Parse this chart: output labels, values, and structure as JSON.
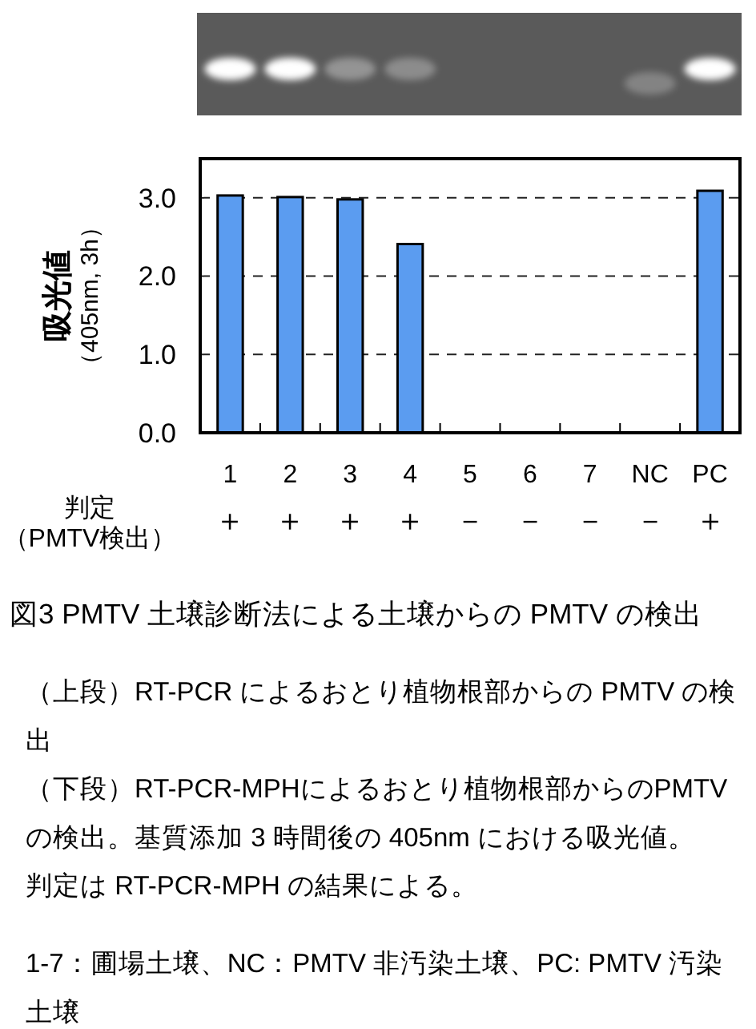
{
  "chart_data": {
    "type": "bar",
    "title": "図3 PMTV 土壌診断法による土壌からの PMTV の検出",
    "ylabel": "吸光値（405nm, 3h）",
    "categories": [
      "1",
      "2",
      "3",
      "4",
      "5",
      "6",
      "7",
      "NC",
      "PC"
    ],
    "values": [
      3.03,
      3.01,
      2.98,
      2.41,
      0,
      0,
      0,
      0,
      3.09
    ],
    "color": "#5b9cf0",
    "ylim": [
      0,
      3.5
    ],
    "yticks": [
      {
        "value": 0,
        "label": "0.0"
      },
      {
        "value": 1,
        "label": "1.0"
      },
      {
        "value": 2,
        "label": "2.0"
      },
      {
        "value": 3,
        "label": "3.0"
      }
    ],
    "grid": "y",
    "annotations": [
      "判定（PMTV検出）",
      "＋",
      "＋",
      "＋",
      "＋",
      "－",
      "－",
      "－",
      "－",
      "＋",
      "（上段）RT-PCR によるおとり植物根部からの PMTV の検出",
      "（下段）RT-PCR-MPHによるおとり植物根部からのPMTVの検出。基質添加 3 時間後の 405nm における吸光値。",
      "判定は RT-PCR-MPH の結果による。",
      "1-7：圃場土壌、NC：PMTV 非汚染土壌、PC: PMTV 汚染土壌"
    ]
  }
}
